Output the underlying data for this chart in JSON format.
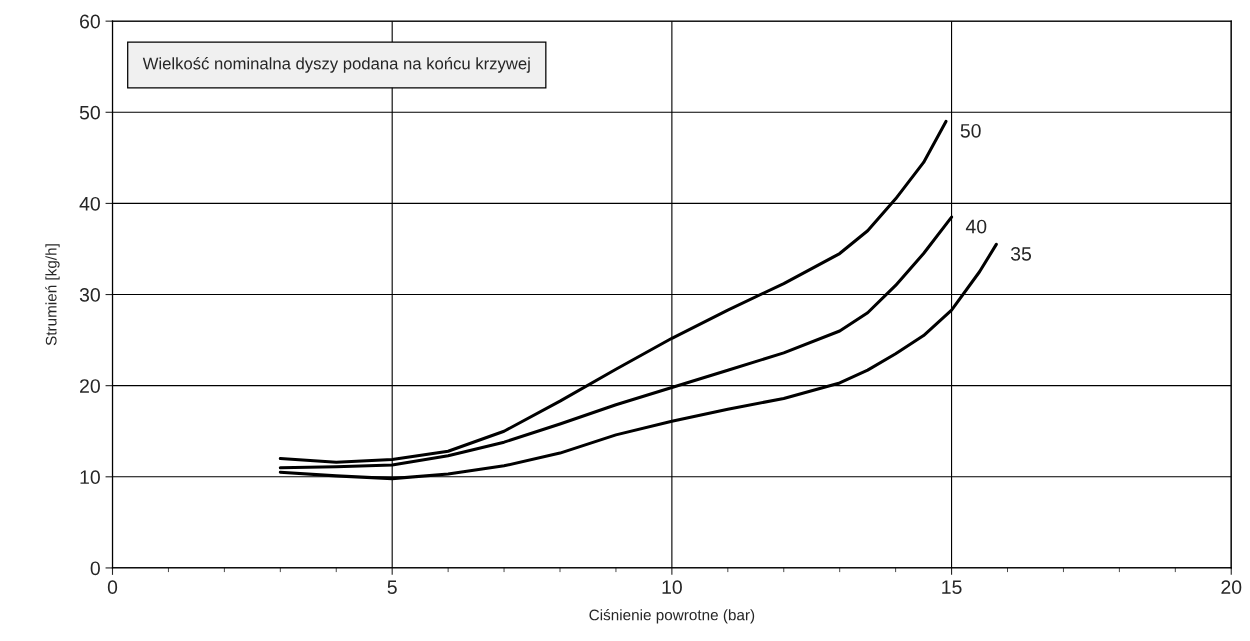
{
  "chart_data": {
    "type": "line",
    "xlabel": "Ciśnienie powrotne (bar)",
    "ylabel": "Strumień [kg/h]",
    "annotations": [
      "Wielkość nominalna dyszy podana na końcu krzywej"
    ],
    "series": [
      {
        "name": "50",
        "color": "#000000",
        "x": [
          3,
          4,
          5,
          6,
          7,
          8,
          9,
          10,
          11,
          12,
          13,
          13.5,
          14,
          14.5,
          14.9
        ],
        "values": [
          12.0,
          11.6,
          11.9,
          12.8,
          15.0,
          18.3,
          21.8,
          25.2,
          28.3,
          31.2,
          34.5,
          37,
          40.5,
          44.5,
          49
        ]
      },
      {
        "name": "40",
        "color": "#000000",
        "x": [
          3,
          4,
          5,
          6,
          7,
          8,
          9,
          10,
          11,
          12,
          13,
          13.5,
          14,
          14.5,
          15
        ],
        "values": [
          11.0,
          11.1,
          11.3,
          12.3,
          13.8,
          15.8,
          17.9,
          19.8,
          21.7,
          23.6,
          26.0,
          28,
          31,
          34.5,
          38.5
        ]
      },
      {
        "name": "35",
        "color": "#000000",
        "x": [
          3,
          4,
          5,
          6,
          7,
          8,
          9,
          10,
          11,
          12,
          13,
          13.5,
          14,
          14.5,
          15,
          15.5,
          15.8
        ],
        "values": [
          10.5,
          10.1,
          9.8,
          10.3,
          11.2,
          12.6,
          14.6,
          16.1,
          17.4,
          18.6,
          20.3,
          21.7,
          23.5,
          25.5,
          28.3,
          32.5,
          35.5
        ]
      }
    ],
    "xlim": [
      0,
      20
    ],
    "xticks": [
      0,
      5,
      10,
      15,
      20
    ],
    "ylim": [
      0,
      60
    ],
    "yticks": [
      0,
      10,
      20,
      30,
      40,
      50,
      60
    ],
    "grid": true,
    "legend": false,
    "marker": "none",
    "line_style": "solid"
  }
}
